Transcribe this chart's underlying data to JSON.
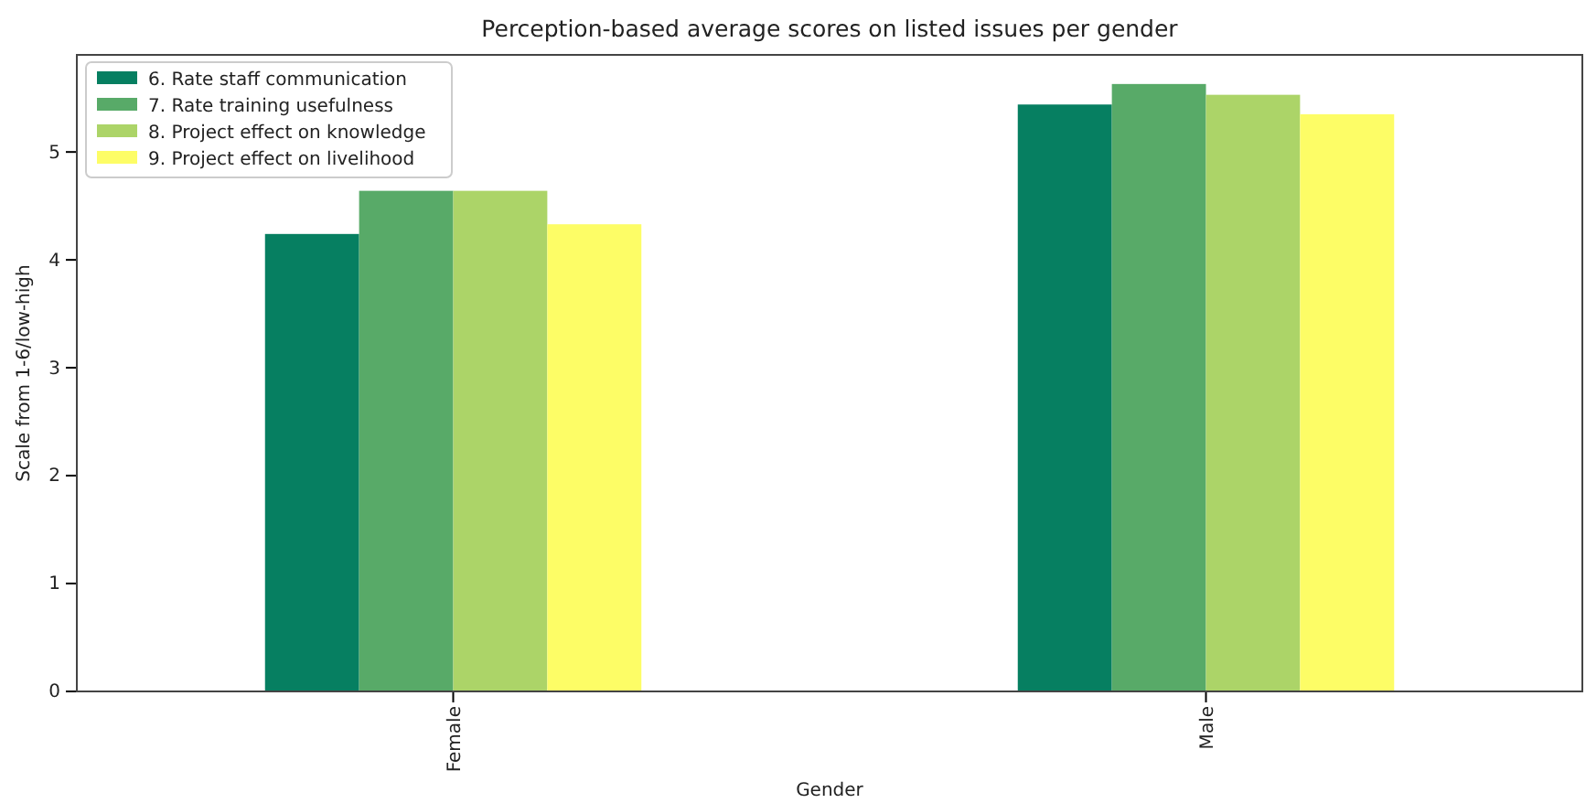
{
  "chart_data": {
    "type": "bar",
    "title": "Perception-based average scores on listed issues per gender",
    "xlabel": "Gender",
    "ylabel": "Scale from 1-6/low-high",
    "categories": [
      "Female",
      "Male"
    ],
    "series": [
      {
        "name": "6. Rate staff communication",
        "color": "#067f61",
        "values": [
          4.24,
          5.44
        ]
      },
      {
        "name": "7. Rate training usefulness",
        "color": "#58aa68",
        "values": [
          4.64,
          5.63
        ]
      },
      {
        "name": "8. Project effect on knowledge",
        "color": "#acd468",
        "values": [
          4.64,
          5.53
        ]
      },
      {
        "name": "9. Project effect on livelihood",
        "color": "#fdfd66",
        "values": [
          4.33,
          5.35
        ]
      }
    ],
    "ylim": [
      0,
      5.9
    ],
    "yticks": [
      0,
      1,
      2,
      3,
      4,
      5
    ],
    "legend": "top left"
  }
}
